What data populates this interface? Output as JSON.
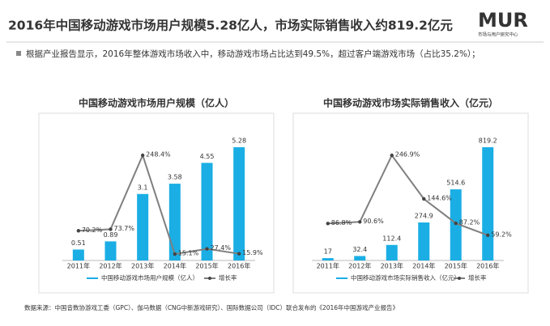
{
  "header": {
    "title": "2016年中国移动游戏市场用户规模5.28亿人，市场实际销售收入约819.2亿元",
    "logo": "MUR",
    "logo_sub": "市场与用户研究中心"
  },
  "note": "根据产业报告显示，2016年整体游戏市场收入中，移动游戏市场占比达到49.5%，超过客户端游戏市场（占比35.2%）；",
  "source": "数据来源：中国音数协游戏工委（GPC）、伽马数据（CNG中新游戏研究）、国际数据公司（IDC）联合发布的《2016年中国游戏产业报告》",
  "chart_data": [
    {
      "type": "combo",
      "title": "中国移动游戏市场用户规模（亿人）",
      "categories": [
        "2011年",
        "2012年",
        "2013年",
        "2014年",
        "2015年",
        "2016年"
      ],
      "series": [
        {
          "name": "中国移动游戏市场用户规模（亿人）",
          "type": "bar",
          "color": "#1aaee5",
          "values": [
            0.51,
            0.89,
            3.1,
            3.58,
            4.55,
            5.28
          ]
        },
        {
          "name": "增长率",
          "type": "line",
          "axis": "y2",
          "color": "#7f7f7f",
          "values": [
            70.2,
            73.7,
            248.4,
            15.1,
            27.4,
            15.9
          ],
          "value_labels": [
            "70.2%",
            "73.7%",
            "248.4%",
            "15.1%",
            "27.4%",
            "15.9%"
          ]
        }
      ]
    },
    {
      "type": "combo",
      "title": "中国移动游戏市场实际销售收入（亿元）",
      "categories": [
        "2011年",
        "2012年",
        "2013年",
        "2014年",
        "2015年",
        "2016年"
      ],
      "series": [
        {
          "name": "中国移动游戏市场实际销售收入（亿元）",
          "type": "bar",
          "color": "#1aaee5",
          "values": [
            17,
            32.4,
            112.4,
            274.9,
            514.6,
            819.2
          ]
        },
        {
          "name": "增长率",
          "type": "line",
          "axis": "y2",
          "color": "#7f7f7f",
          "values": [
            86.8,
            90.6,
            246.9,
            144.6,
            87.2,
            59.2
          ],
          "value_labels": [
            "86.8%",
            "90.6%",
            "246.9%",
            "144.6%",
            "87.2%",
            "59.2%"
          ]
        }
      ]
    }
  ]
}
